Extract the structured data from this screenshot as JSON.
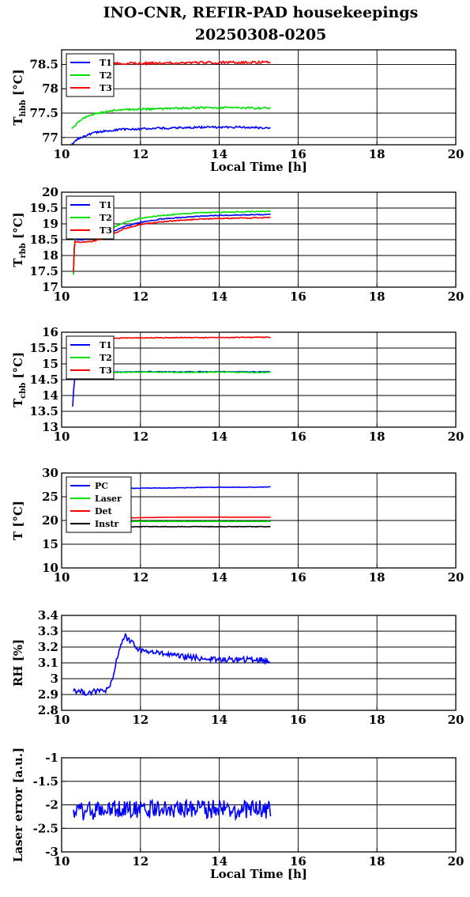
{
  "page": {
    "title_line1": "INO-CNR, REFIR-PAD housekeepings",
    "title_line2": "20250308-0205"
  },
  "chart_data": [
    {
      "type": "line",
      "ylabel": "T",
      "ylabel_sub": "hbb",
      "ylabel_unit": " [°C]",
      "xlabel": "Local Time [h]",
      "xlim": [
        10,
        20
      ],
      "ylim": [
        76.85,
        78.8
      ],
      "yticks": [
        77,
        77.5,
        78,
        78.5
      ],
      "ytick_labels": [
        "77",
        "77.5",
        "78",
        "78.5"
      ],
      "xticks": [
        10,
        12,
        14,
        16,
        18,
        20
      ],
      "xtick_labels": [
        "10",
        "12",
        "14",
        "16",
        "18",
        "20"
      ],
      "grid": true,
      "legend_position": "top-left",
      "series": [
        {
          "name": "T1",
          "color": "#0000ff",
          "noise": 0.02,
          "x": [
            10.25,
            10.4,
            10.6,
            10.8,
            11.0,
            11.3,
            11.6,
            12.0,
            12.5,
            13.0,
            13.5,
            14.0,
            14.5,
            15.0,
            15.3
          ],
          "y": [
            76.85,
            76.97,
            77.04,
            77.09,
            77.12,
            77.15,
            77.17,
            77.18,
            77.19,
            77.2,
            77.21,
            77.21,
            77.21,
            77.2,
            77.2
          ]
        },
        {
          "name": "T2",
          "color": "#00e000",
          "noise": 0.02,
          "x": [
            10.25,
            10.4,
            10.6,
            10.8,
            11.0,
            11.3,
            11.6,
            12.0,
            12.5,
            13.0,
            13.5,
            14.0,
            14.5,
            15.0,
            15.3
          ],
          "y": [
            77.18,
            77.3,
            77.41,
            77.47,
            77.51,
            77.55,
            77.57,
            77.58,
            77.59,
            77.6,
            77.61,
            77.61,
            77.61,
            77.6,
            77.6
          ]
        },
        {
          "name": "T3",
          "color": "#ff0000",
          "noise": 0.025,
          "x": [
            10.25,
            10.5,
            11.0,
            11.5,
            12.0,
            12.5,
            13.0,
            13.5,
            14.0,
            14.5,
            15.0,
            15.3
          ],
          "y": [
            78.48,
            78.5,
            78.51,
            78.52,
            78.52,
            78.53,
            78.53,
            78.54,
            78.54,
            78.54,
            78.54,
            78.55
          ]
        }
      ]
    },
    {
      "type": "line",
      "ylabel": "T",
      "ylabel_sub": "rbb",
      "ylabel_unit": " [°C]",
      "xlabel": "",
      "xlim": [
        10,
        20
      ],
      "ylim": [
        17,
        20
      ],
      "yticks": [
        17,
        17.5,
        18,
        18.5,
        19,
        19.5,
        20
      ],
      "ytick_labels": [
        "17",
        "17.5",
        "18",
        "18.5",
        "19",
        "19.5",
        "20"
      ],
      "xticks": [
        10,
        12,
        14,
        16,
        18,
        20
      ],
      "xtick_labels": [
        "10",
        "12",
        "14",
        "16",
        "18",
        "20"
      ],
      "grid": true,
      "legend_position": "top-left",
      "series": [
        {
          "name": "T1",
          "color": "#0000ff",
          "noise": 0.015,
          "x": [
            10.3,
            10.33,
            10.5,
            10.8,
            11.0,
            11.3,
            11.6,
            12.0,
            12.5,
            13.0,
            13.5,
            14.0,
            14.5,
            15.0,
            15.3
          ],
          "y": [
            17.45,
            18.5,
            18.5,
            18.55,
            18.62,
            18.75,
            18.92,
            19.05,
            19.15,
            19.2,
            19.24,
            19.27,
            19.28,
            19.29,
            19.3
          ]
        },
        {
          "name": "T2",
          "color": "#00e000",
          "noise": 0.015,
          "x": [
            10.3,
            10.33,
            10.5,
            10.8,
            11.0,
            11.3,
            11.6,
            12.0,
            12.5,
            13.0,
            13.5,
            14.0,
            14.5,
            15.0,
            15.3
          ],
          "y": [
            17.4,
            18.55,
            18.55,
            18.62,
            18.72,
            18.88,
            19.05,
            19.18,
            19.26,
            19.31,
            19.35,
            19.37,
            19.38,
            19.39,
            19.4
          ]
        },
        {
          "name": "T3",
          "color": "#ff0000",
          "noise": 0.015,
          "x": [
            10.3,
            10.33,
            10.5,
            10.8,
            11.0,
            11.3,
            11.6,
            12.0,
            12.5,
            13.0,
            13.5,
            14.0,
            14.5,
            15.0,
            15.3
          ],
          "y": [
            17.5,
            18.45,
            18.42,
            18.45,
            18.52,
            18.68,
            18.85,
            18.98,
            19.06,
            19.11,
            19.15,
            19.17,
            19.18,
            19.19,
            19.2
          ]
        }
      ]
    },
    {
      "type": "line",
      "ylabel": "T",
      "ylabel_sub": "cbb",
      "ylabel_unit": " [°C]",
      "xlabel": "",
      "xlim": [
        10,
        20
      ],
      "ylim": [
        13,
        16
      ],
      "yticks": [
        13,
        13.5,
        14,
        14.5,
        15,
        15.5,
        16
      ],
      "ytick_labels": [
        "13",
        "13.5",
        "14",
        "14.5",
        "15",
        "15.5",
        "16"
      ],
      "xticks": [
        10,
        12,
        14,
        16,
        18,
        20
      ],
      "xtick_labels": [
        "10",
        "12",
        "14",
        "16",
        "18",
        "20"
      ],
      "grid": true,
      "legend_position": "top-left",
      "series": [
        {
          "name": "T1",
          "color": "#0000ff",
          "noise": 0.01,
          "x": [
            10.28,
            10.3,
            10.35,
            10.6,
            11.0,
            12.0,
            13.0,
            14.0,
            15.0,
            15.3
          ],
          "y": [
            13.65,
            14.1,
            14.73,
            14.74,
            14.74,
            14.75,
            14.75,
            14.75,
            14.75,
            14.75
          ]
        },
        {
          "name": "T2",
          "color": "#00e000",
          "noise": 0.012,
          "x": [
            10.3,
            10.6,
            11.0,
            12.0,
            13.0,
            14.0,
            15.0,
            15.3
          ],
          "y": [
            14.72,
            14.73,
            14.73,
            14.74,
            14.73,
            14.74,
            14.73,
            14.73
          ]
        },
        {
          "name": "T3",
          "color": "#ff0000",
          "noise": 0.012,
          "x": [
            10.3,
            10.6,
            11.0,
            12.0,
            13.0,
            14.0,
            15.0,
            15.3
          ],
          "y": [
            15.78,
            15.8,
            15.81,
            15.82,
            15.83,
            15.83,
            15.84,
            15.84
          ]
        }
      ]
    },
    {
      "type": "line",
      "ylabel": "T [°C]",
      "ylabel_sub": "",
      "ylabel_unit": "",
      "xlabel": "",
      "xlim": [
        10,
        20
      ],
      "ylim": [
        10,
        30
      ],
      "yticks": [
        10,
        15,
        20,
        25,
        30
      ],
      "ytick_labels": [
        "10",
        "15",
        "20",
        "25",
        "30"
      ],
      "xticks": [
        10,
        12,
        14,
        16,
        18,
        20
      ],
      "xtick_labels": [
        "10",
        "12",
        "14",
        "16",
        "18",
        "20"
      ],
      "grid": true,
      "legend_position": "top-left",
      "series": [
        {
          "name": "PC",
          "color": "#0000ff",
          "noise": 0.05,
          "x": [
            10.3,
            11.0,
            12.0,
            13.0,
            14.0,
            15.0,
            15.3
          ],
          "y": [
            26.6,
            26.7,
            26.8,
            26.9,
            27.0,
            27.0,
            27.1
          ]
        },
        {
          "name": "Laser",
          "color": "#00e000",
          "noise": 0.02,
          "x": [
            10.3,
            11.0,
            12.0,
            13.0,
            14.0,
            15.0,
            15.3
          ],
          "y": [
            19.8,
            19.8,
            19.8,
            19.8,
            19.8,
            19.8,
            19.8
          ]
        },
        {
          "name": "Det",
          "color": "#ff0000",
          "noise": 0.02,
          "x": [
            10.3,
            11.0,
            12.0,
            13.0,
            14.0,
            15.0,
            15.3
          ],
          "y": [
            20.3,
            20.4,
            20.6,
            20.7,
            20.7,
            20.7,
            20.7
          ]
        },
        {
          "name": "Instr",
          "color": "#000000",
          "noise": 0.05,
          "x": [
            10.3,
            11.0,
            12.0,
            13.0,
            14.0,
            15.0,
            15.3
          ],
          "y": [
            18.6,
            18.6,
            18.7,
            18.7,
            18.7,
            18.7,
            18.7
          ]
        }
      ]
    },
    {
      "type": "line",
      "ylabel": "RH [%]",
      "ylabel_sub": "",
      "ylabel_unit": "",
      "xlabel": "",
      "xlim": [
        10,
        20
      ],
      "ylim": [
        2.8,
        3.4
      ],
      "yticks": [
        2.8,
        2.9,
        3,
        3.1,
        3.2,
        3.3,
        3.4
      ],
      "ytick_labels": [
        "2.8",
        "2.9",
        "3",
        "3.1",
        "3.2",
        "3.3",
        "3.4"
      ],
      "xticks": [
        10,
        12,
        14,
        16,
        18,
        20
      ],
      "xtick_labels": [
        "10",
        "12",
        "14",
        "16",
        "18",
        "20"
      ],
      "grid": true,
      "legend_position": "",
      "series": [
        {
          "name": "",
          "color": "#0000ff",
          "noise": 0.018,
          "x": [
            10.3,
            10.6,
            10.9,
            11.2,
            11.3,
            11.45,
            11.6,
            11.8,
            12.0,
            12.5,
            13.0,
            13.5,
            14.0,
            14.5,
            15.0,
            15.3
          ],
          "y": [
            2.93,
            2.91,
            2.92,
            2.93,
            3.0,
            3.18,
            3.27,
            3.22,
            3.18,
            3.16,
            3.14,
            3.13,
            3.12,
            3.12,
            3.12,
            3.11
          ]
        }
      ]
    },
    {
      "type": "line",
      "ylabel": "Laser error [a.u.]",
      "ylabel_sub": "",
      "ylabel_unit": "",
      "xlabel": "Local Time [h]",
      "xlim": [
        10,
        20
      ],
      "ylim": [
        -3,
        -1
      ],
      "yticks": [
        -3,
        -2.5,
        -2,
        -1.5,
        -1
      ],
      "ytick_labels": [
        "-3",
        "-2.5",
        "-2",
        "-1.5",
        "-1"
      ],
      "xticks": [
        10,
        12,
        14,
        16,
        18,
        20
      ],
      "xtick_labels": [
        "10",
        "12",
        "14",
        "16",
        "18",
        "20"
      ],
      "grid": true,
      "legend_position": "",
      "series": [
        {
          "name": "",
          "color": "#0000ff",
          "noise": 0.2,
          "x": [
            10.3,
            11.0,
            12.0,
            13.0,
            14.0,
            15.0,
            15.3
          ],
          "y": [
            -2.15,
            -2.1,
            -2.1,
            -2.08,
            -2.1,
            -2.1,
            -2.1
          ]
        }
      ]
    }
  ]
}
